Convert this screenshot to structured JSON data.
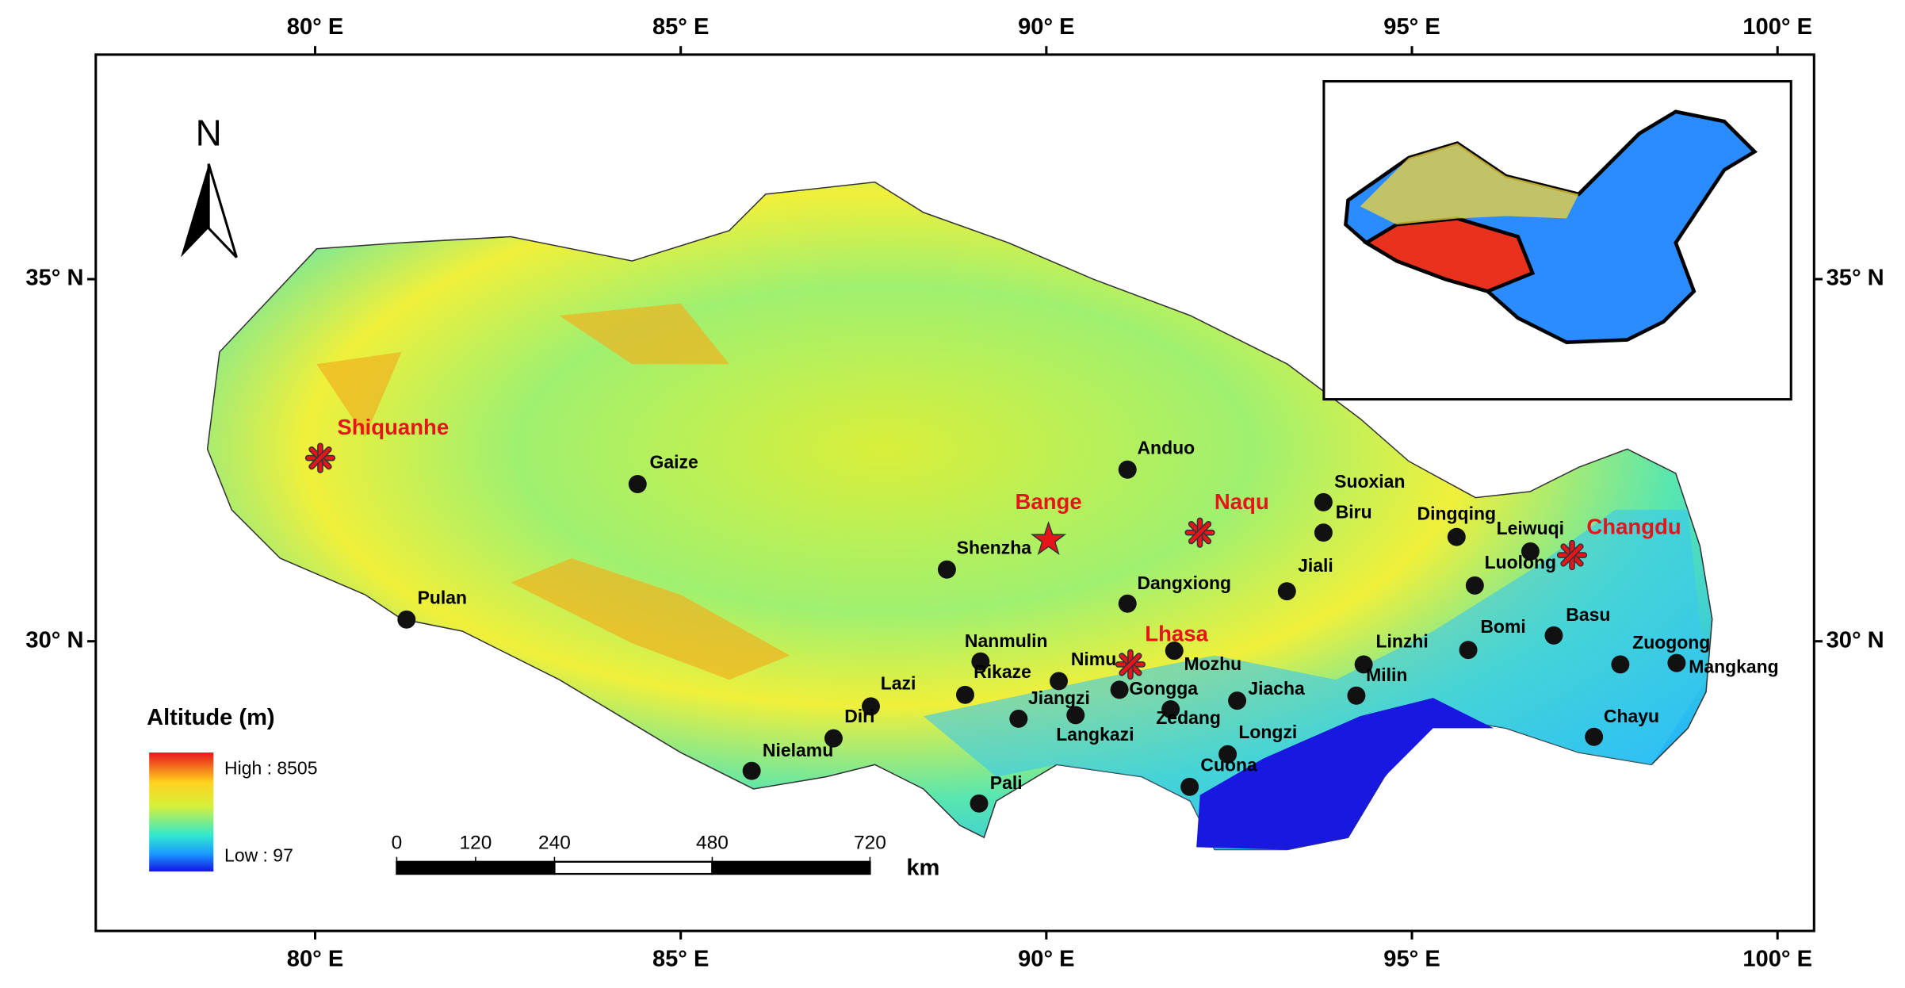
{
  "map": {
    "xlim": [
      77,
      100.5
    ],
    "ylim": [
      26,
      38.1
    ],
    "xticks": [
      {
        "value": 80,
        "label": "80° E"
      },
      {
        "value": 85,
        "label": "85° E"
      },
      {
        "value": 90,
        "label": "90° E"
      },
      {
        "value": 95,
        "label": "95° E"
      },
      {
        "value": 100,
        "label": "100° E"
      }
    ],
    "yticks": [
      {
        "value": 30,
        "label": "30° N"
      },
      {
        "value": 35,
        "label": "35° N"
      }
    ],
    "north_label": "N",
    "legend": {
      "title": "Altitude (m)",
      "high": "High : 8505",
      "low": "Low : 97"
    },
    "scale_bar": {
      "ticks": [
        0,
        120,
        240,
        480,
        720
      ],
      "unit": "km"
    },
    "stations": [
      {
        "name": "Gaize",
        "lon": 84.41,
        "lat": 32.17
      },
      {
        "name": "Pulan",
        "lon": 81.25,
        "lat": 30.3
      },
      {
        "name": "Anduo",
        "lon": 91.11,
        "lat": 32.37
      },
      {
        "name": "Suoxian",
        "lon": 93.79,
        "lat": 31.92
      },
      {
        "name": "Biru",
        "lon": 93.79,
        "lat": 31.5
      },
      {
        "name": "Dingqing",
        "lon": 95.61,
        "lat": 31.44
      },
      {
        "name": "Leiwuqi",
        "lon": 96.62,
        "lat": 31.24
      },
      {
        "name": "Luolong",
        "lon": 95.86,
        "lat": 30.77
      },
      {
        "name": "Shenzha",
        "lon": 88.64,
        "lat": 30.99
      },
      {
        "name": "Dangxiong",
        "lon": 91.11,
        "lat": 30.52
      },
      {
        "name": "Jiali",
        "lon": 93.29,
        "lat": 30.69
      },
      {
        "name": "Basu",
        "lon": 96.94,
        "lat": 30.08
      },
      {
        "name": "Bomi",
        "lon": 95.77,
        "lat": 29.88
      },
      {
        "name": "Zuogong",
        "lon": 97.85,
        "lat": 29.68
      },
      {
        "name": "Mangkang",
        "lon": 98.62,
        "lat": 29.7
      },
      {
        "name": "Linzhi",
        "lon": 94.34,
        "lat": 29.68
      },
      {
        "name": "Milin",
        "lon": 94.24,
        "lat": 29.25
      },
      {
        "name": "Mozhu",
        "lon": 91.75,
        "lat": 29.87
      },
      {
        "name": "Nanmulin",
        "lon": 89.1,
        "lat": 29.72
      },
      {
        "name": "Nimu",
        "lon": 90.17,
        "lat": 29.45
      },
      {
        "name": "Rikaze",
        "lon": 88.89,
        "lat": 29.26
      },
      {
        "name": "Gongga",
        "lon": 91.0,
        "lat": 29.33
      },
      {
        "name": "Zedang",
        "lon": 91.7,
        "lat": 29.06
      },
      {
        "name": "Jiacha",
        "lon": 92.61,
        "lat": 29.18
      },
      {
        "name": "Jiangzi",
        "lon": 89.62,
        "lat": 28.93
      },
      {
        "name": "Langkazi",
        "lon": 90.4,
        "lat": 28.98
      },
      {
        "name": "Lazi",
        "lon": 87.6,
        "lat": 29.1
      },
      {
        "name": "Diri",
        "lon": 87.09,
        "lat": 28.66
      },
      {
        "name": "Nielamu",
        "lon": 85.97,
        "lat": 28.21
      },
      {
        "name": "Longzi",
        "lon": 92.48,
        "lat": 28.44
      },
      {
        "name": "Cuona",
        "lon": 91.96,
        "lat": 27.99
      },
      {
        "name": "Pali",
        "lon": 89.08,
        "lat": 27.76
      },
      {
        "name": "Chayu",
        "lon": 97.49,
        "lat": 28.68
      }
    ],
    "capitals": [
      {
        "name": "Shiquanhe",
        "lon": 80.07,
        "lat": 32.53
      },
      {
        "name": "Naqu",
        "lon": 92.1,
        "lat": 31.5
      },
      {
        "name": "Lhasa",
        "lon": 91.15,
        "lat": 29.68
      },
      {
        "name": "Changdu",
        "lon": 97.19,
        "lat": 31.19
      }
    ],
    "star_sites": [
      {
        "name": "Bange",
        "lon": 90.03,
        "lat": 31.4
      }
    ]
  }
}
